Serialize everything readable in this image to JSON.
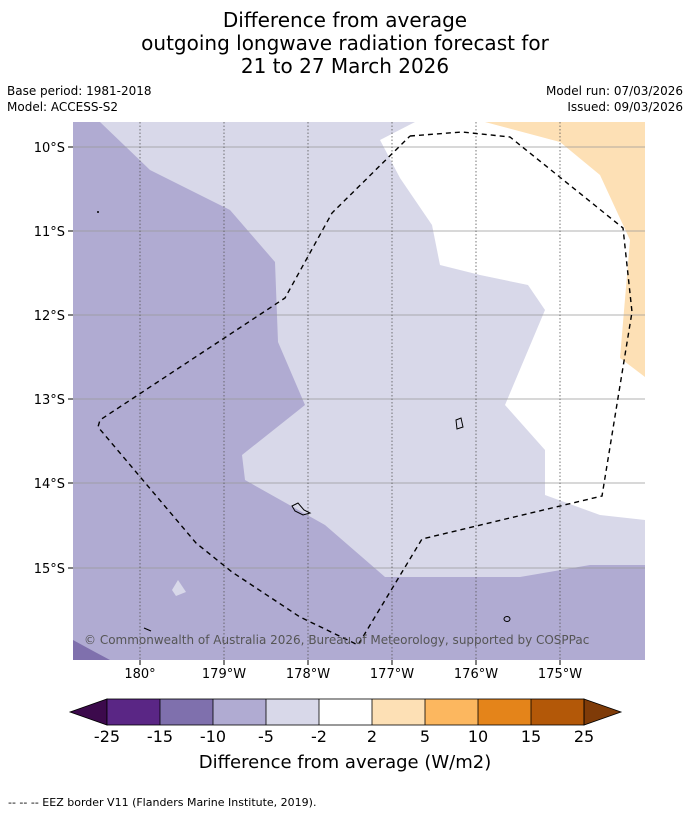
{
  "title": {
    "line1": "Difference from average",
    "line2": "outgoing longwave radiation forecast for",
    "line3": "21 to 27 March 2026"
  },
  "meta": {
    "base_period": "Base period: 1981-2018",
    "model": "Model: ACCESS-S2",
    "model_run": "Model run: 07/03/2026",
    "issued": "Issued: 09/03/2026"
  },
  "axes": {
    "lat_labels": [
      "10°S",
      "11°S",
      "12°S",
      "13°S",
      "14°S",
      "15°S"
    ],
    "lon_labels": [
      "180°",
      "179°W",
      "178°W",
      "177°W",
      "176°W",
      "175°W"
    ]
  },
  "copyright": "© Commonwealth of Australia 2026, Bureau of Meteorology, supported by COSPPac",
  "colorbar": {
    "title": "Difference from average (W/m2)",
    "ticks": [
      "-25",
      "-15",
      "-10",
      "-5",
      "-2",
      "2",
      "5",
      "10",
      "15",
      "25"
    ],
    "colors": {
      "below_min": "#3c0a4c",
      "c1": "#5a2685",
      "c2": "#7f70ad",
      "c3": "#b0abd2",
      "c4": "#d8d8e9",
      "c5": "#ffffff",
      "c6": "#fde0b5",
      "c7": "#fcb75f",
      "c8": "#e4841a",
      "c9": "#b35808",
      "above_max": "#7f3b08"
    }
  },
  "footer": "-- -- -- EEZ border V11 (Flanders Marine Institute, 2019)."
}
